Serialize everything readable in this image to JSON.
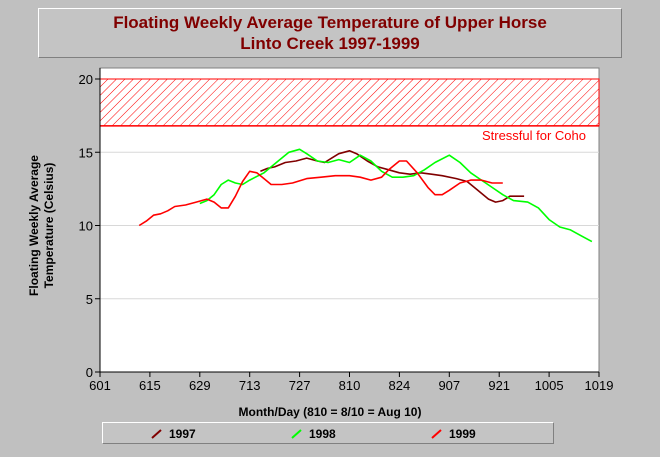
{
  "chart_data": {
    "type": "line",
    "title_lines": [
      "Floating Weekly Average Temperature of Upper Horse",
      "Linto Creek 1997-1999"
    ],
    "ylabel_lines": [
      "Floating Weekly Average",
      "Temperature (Celsius)"
    ],
    "xlabel": "Month/Day (810 = 8/10 = Aug 10)",
    "x_ticks": [
      "601",
      "615",
      "629",
      "713",
      "727",
      "810",
      "824",
      "907",
      "921",
      "1005",
      "1019"
    ],
    "x_tick_dates": [
      "06-01",
      "06-15",
      "06-29",
      "07-13",
      "07-27",
      "08-10",
      "08-24",
      "09-07",
      "09-21",
      "10-05",
      "10-19"
    ],
    "y_ticks": [
      0,
      5,
      10,
      15,
      20
    ],
    "ylim": [
      0,
      20
    ],
    "xlim": [
      "06-01",
      "10-19"
    ],
    "grid": "horizontal",
    "threshold_band": {
      "from": 16.8,
      "to": 20,
      "label": "Stressful for Coho",
      "color": "#ff0000"
    },
    "legend_position": "bottom",
    "series": [
      {
        "name": "1997",
        "color": "#800000",
        "points": [
          [
            "07-16",
            13.7
          ],
          [
            "07-18",
            13.9
          ],
          [
            "07-20",
            14.0
          ],
          [
            "07-23",
            14.3
          ],
          [
            "07-26",
            14.4
          ],
          [
            "07-29",
            14.6
          ],
          [
            "08-01",
            14.4
          ],
          [
            "08-03",
            14.3
          ],
          [
            "08-05",
            14.6
          ],
          [
            "08-07",
            14.9
          ],
          [
            "08-10",
            15.1
          ],
          [
            "08-12",
            14.9
          ],
          [
            "08-15",
            14.4
          ],
          [
            "08-18",
            14.0
          ],
          [
            "08-21",
            13.8
          ],
          [
            "08-24",
            13.6
          ],
          [
            "08-27",
            13.5
          ],
          [
            "08-30",
            13.6
          ],
          [
            "09-02",
            13.5
          ],
          [
            "09-05",
            13.4
          ],
          [
            "09-09",
            13.2
          ],
          [
            "09-12",
            13.0
          ],
          [
            "09-14",
            12.6
          ],
          [
            "09-16",
            12.2
          ],
          [
            "09-18",
            11.8
          ],
          [
            "09-20",
            11.6
          ],
          [
            "09-22",
            11.7
          ],
          [
            "09-24",
            12.0
          ],
          [
            "09-28",
            12.0
          ]
        ]
      },
      {
        "name": "1998",
        "color": "#00ff00",
        "points": [
          [
            "06-29",
            11.5
          ],
          [
            "07-01",
            11.7
          ],
          [
            "07-03",
            12.1
          ],
          [
            "07-05",
            12.8
          ],
          [
            "07-07",
            13.1
          ],
          [
            "07-09",
            12.9
          ],
          [
            "07-11",
            12.8
          ],
          [
            "07-13",
            13.1
          ],
          [
            "07-17",
            13.6
          ],
          [
            "07-21",
            14.4
          ],
          [
            "07-24",
            15.0
          ],
          [
            "07-27",
            15.2
          ],
          [
            "07-29",
            14.9
          ],
          [
            "08-01",
            14.4
          ],
          [
            "08-04",
            14.3
          ],
          [
            "08-07",
            14.5
          ],
          [
            "08-10",
            14.3
          ],
          [
            "08-13",
            14.8
          ],
          [
            "08-16",
            14.4
          ],
          [
            "08-19",
            13.7
          ],
          [
            "08-22",
            13.3
          ],
          [
            "08-25",
            13.3
          ],
          [
            "08-28",
            13.4
          ],
          [
            "08-31",
            13.8
          ],
          [
            "09-03",
            14.3
          ],
          [
            "09-07",
            14.8
          ],
          [
            "09-10",
            14.3
          ],
          [
            "09-13",
            13.6
          ],
          [
            "09-16",
            13.1
          ],
          [
            "09-19",
            12.6
          ],
          [
            "09-22",
            12.1
          ],
          [
            "09-25",
            11.7
          ],
          [
            "09-29",
            11.6
          ],
          [
            "10-02",
            11.2
          ],
          [
            "10-05",
            10.4
          ],
          [
            "10-08",
            9.9
          ],
          [
            "10-11",
            9.7
          ],
          [
            "10-14",
            9.3
          ],
          [
            "10-17",
            8.9
          ]
        ]
      },
      {
        "name": "1999",
        "color": "#ff0000",
        "points": [
          [
            "06-12",
            10.0
          ],
          [
            "06-14",
            10.3
          ],
          [
            "06-16",
            10.7
          ],
          [
            "06-18",
            10.8
          ],
          [
            "06-20",
            11.0
          ],
          [
            "06-22",
            11.3
          ],
          [
            "06-25",
            11.4
          ],
          [
            "06-28",
            11.6
          ],
          [
            "07-01",
            11.8
          ],
          [
            "07-03",
            11.6
          ],
          [
            "07-05",
            11.2
          ],
          [
            "07-07",
            11.2
          ],
          [
            "07-09",
            12.0
          ],
          [
            "07-11",
            13.0
          ],
          [
            "07-13",
            13.7
          ],
          [
            "07-15",
            13.6
          ],
          [
            "07-17",
            13.2
          ],
          [
            "07-19",
            12.8
          ],
          [
            "07-22",
            12.8
          ],
          [
            "07-25",
            12.9
          ],
          [
            "07-29",
            13.2
          ],
          [
            "08-02",
            13.3
          ],
          [
            "08-06",
            13.4
          ],
          [
            "08-10",
            13.4
          ],
          [
            "08-13",
            13.3
          ],
          [
            "08-16",
            13.1
          ],
          [
            "08-19",
            13.3
          ],
          [
            "08-21",
            13.8
          ],
          [
            "08-24",
            14.4
          ],
          [
            "08-26",
            14.4
          ],
          [
            "08-29",
            13.6
          ],
          [
            "09-01",
            12.6
          ],
          [
            "09-03",
            12.1
          ],
          [
            "09-05",
            12.1
          ],
          [
            "09-07",
            12.4
          ],
          [
            "09-10",
            12.9
          ],
          [
            "09-13",
            13.1
          ],
          [
            "09-16",
            13.1
          ],
          [
            "09-19",
            12.9
          ],
          [
            "09-22",
            12.9
          ]
        ]
      }
    ]
  }
}
